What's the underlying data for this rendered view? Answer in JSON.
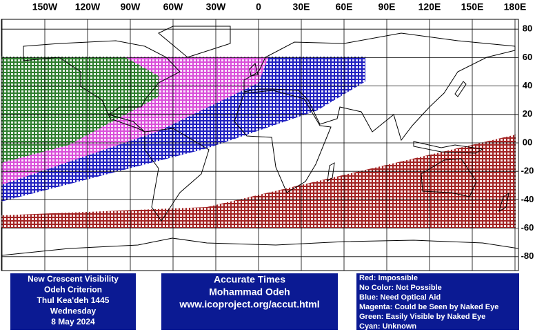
{
  "map": {
    "lon_labels": [
      "150W",
      "120W",
      "90W",
      "60W",
      "30W",
      "0",
      "30E",
      "60E",
      "90E",
      "120E",
      "150E",
      "180E"
    ],
    "lat_labels": [
      "80",
      "60",
      "40",
      "20",
      "00",
      "-20",
      "-40",
      "-60",
      "-80"
    ]
  },
  "info_box": {
    "lines": [
      "New Crescent Visibility",
      "Odeh Criterion",
      "Thul Kea'deh 1445",
      "Wednesday",
      "8 May 2024"
    ]
  },
  "credit_box": {
    "lines": [
      "Accurate Times",
      "Mohammad Odeh",
      "www.icoproject.org/accut.html"
    ]
  },
  "legend": {
    "lines": [
      "Red: Impossible",
      "No Color: Not Possible",
      "Blue: Need Optical Aid",
      "Magenta: Could be Seen by Naked Eye",
      "Green: Easily Visible by Naked Eye",
      "Cyan: Unknown"
    ]
  }
}
